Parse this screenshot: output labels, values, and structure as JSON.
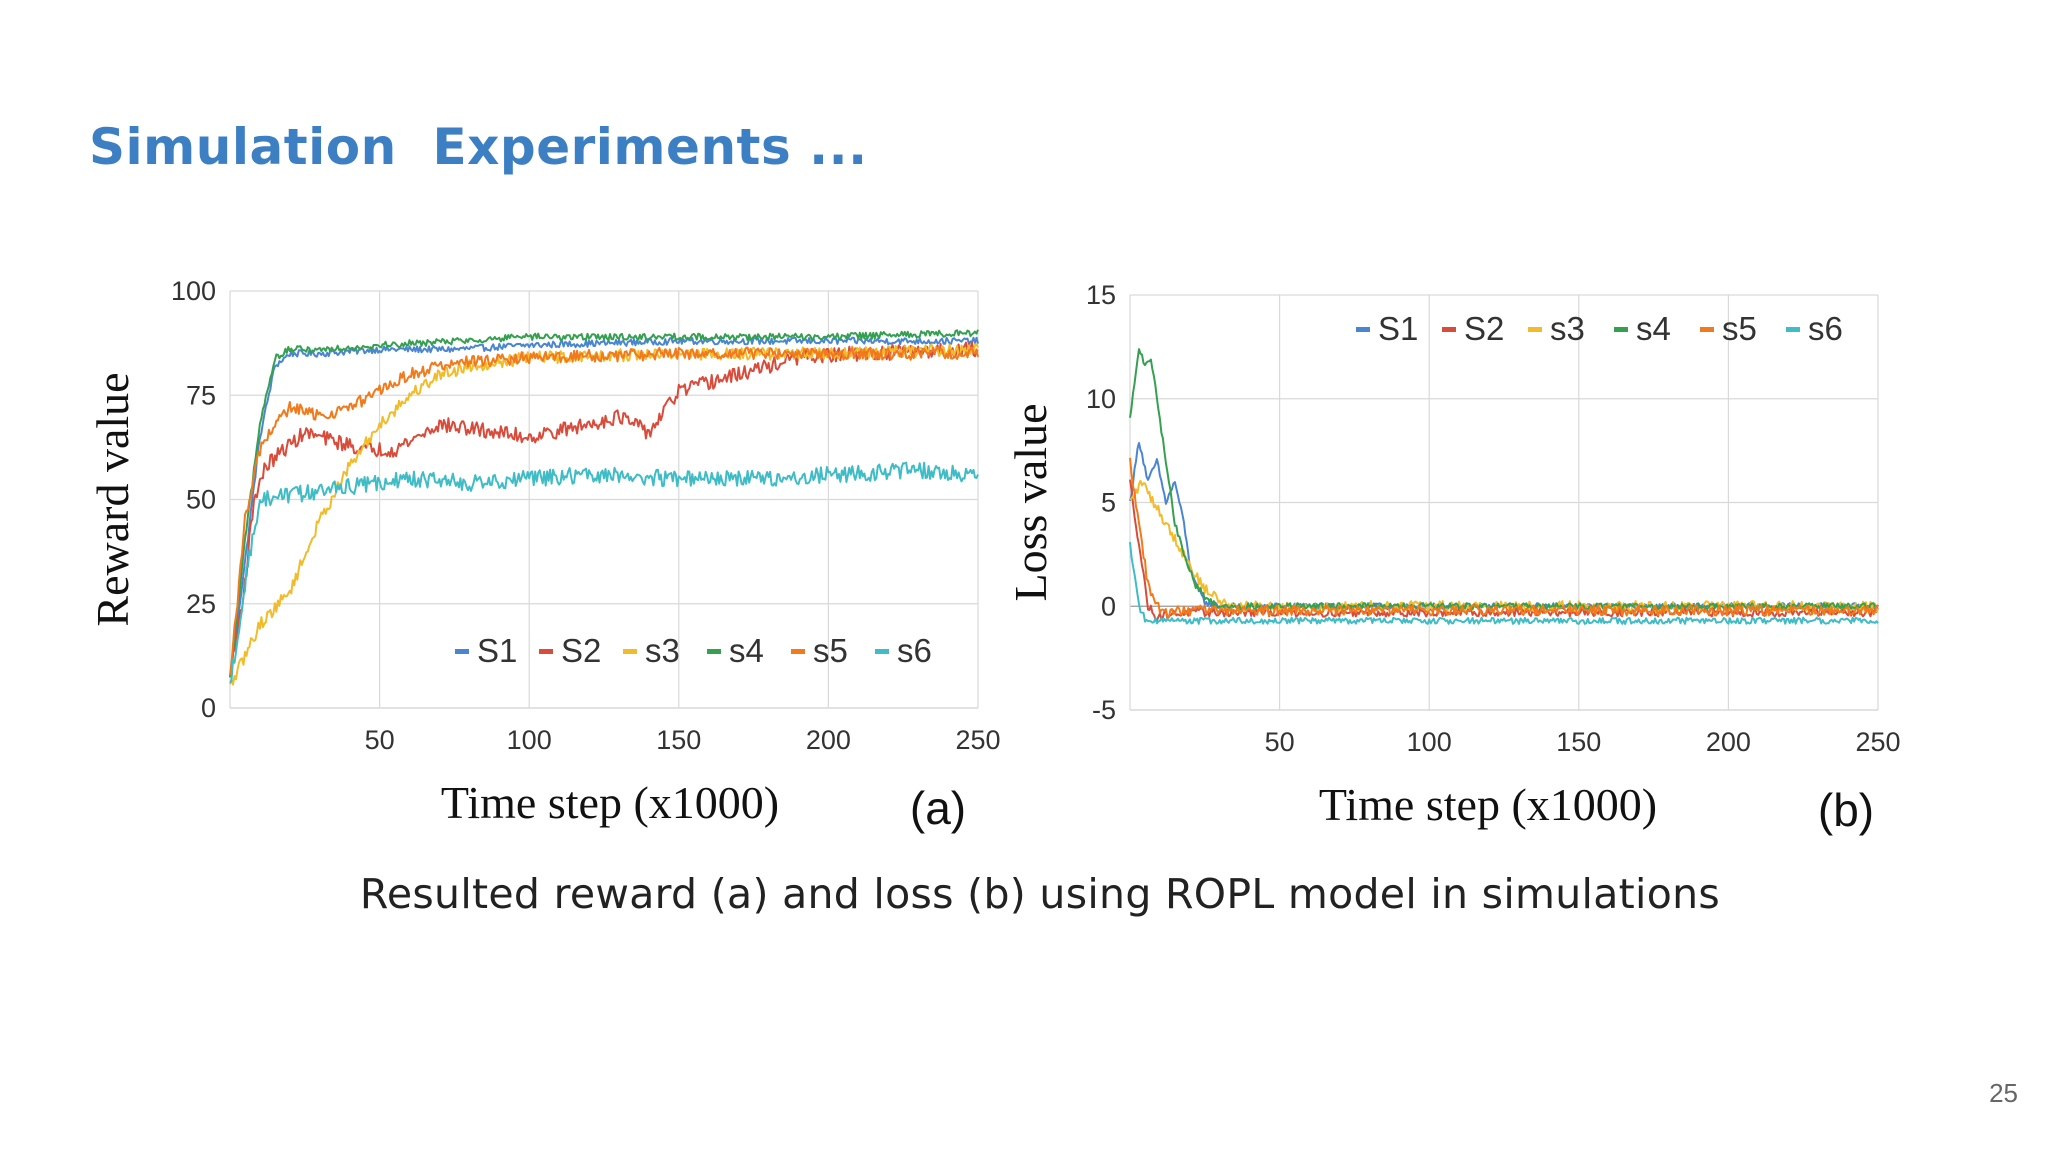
{
  "slide": {
    "title": "Simulation  Experiments ...",
    "caption": "Resulted reward (a) and loss (b) using ROPL model in simulations",
    "page_number": "25"
  },
  "colors": {
    "title": "#3d7fc3",
    "S1": "#4a86cf",
    "S2": "#d84c3c",
    "s3": "#f2bb2a",
    "s4": "#36a050",
    "s5": "#f07a1c",
    "s6": "#3fbcc6"
  },
  "chart_data": [
    {
      "type": "line",
      "panel_label": "(a)",
      "xlabel": "Time step (x1000)",
      "ylabel": "Reward value",
      "xlim": [
        0,
        250
      ],
      "ylim": [
        0,
        100
      ],
      "x_ticks": [
        50,
        100,
        150,
        200,
        250
      ],
      "y_ticks": [
        0,
        25,
        50,
        75,
        100
      ],
      "grid": true,
      "legend_position": "bottom-right",
      "series": [
        {
          "name": "S1",
          "color": "#4a86cf",
          "noise": 0.8,
          "x": [
            0,
            5,
            10,
            15,
            20,
            30,
            50,
            75,
            100,
            150,
            200,
            250
          ],
          "y": [
            7,
            35,
            65,
            82,
            85,
            85,
            86,
            86,
            87,
            88,
            88,
            88
          ]
        },
        {
          "name": "S2",
          "color": "#d84c3c",
          "noise": 1.8,
          "x": [
            0,
            5,
            8,
            12,
            18,
            25,
            35,
            45,
            55,
            70,
            90,
            100,
            120,
            130,
            140,
            150,
            160,
            170,
            190,
            210,
            250
          ],
          "y": [
            7,
            30,
            50,
            58,
            62,
            66,
            64,
            62,
            62,
            68,
            66,
            65,
            68,
            70,
            66,
            76,
            78,
            80,
            84,
            85,
            86
          ]
        },
        {
          "name": "s3",
          "color": "#f2bb2a",
          "noise": 1.5,
          "x": [
            0,
            10,
            20,
            30,
            40,
            50,
            60,
            70,
            80,
            100,
            150,
            200,
            250
          ],
          "y": [
            5,
            20,
            28,
            45,
            58,
            68,
            75,
            80,
            82,
            84,
            85,
            85,
            86
          ]
        },
        {
          "name": "s4",
          "color": "#36a050",
          "noise": 0.8,
          "x": [
            0,
            5,
            10,
            15,
            20,
            30,
            50,
            75,
            100,
            150,
            200,
            250
          ],
          "y": [
            7,
            40,
            68,
            84,
            86,
            86,
            87,
            88,
            89,
            89,
            89,
            90
          ]
        },
        {
          "name": "s5",
          "color": "#f07a1c",
          "noise": 1.5,
          "x": [
            0,
            5,
            10,
            15,
            20,
            30,
            40,
            50,
            60,
            70,
            80,
            100,
            150,
            200,
            250
          ],
          "y": [
            7,
            45,
            62,
            68,
            72,
            70,
            72,
            76,
            80,
            82,
            83,
            84,
            85,
            85,
            85
          ]
        },
        {
          "name": "s6",
          "color": "#3fbcc6",
          "noise": 2.0,
          "x": [
            0,
            5,
            10,
            20,
            40,
            60,
            80,
            100,
            120,
            150,
            180,
            200,
            230,
            250
          ],
          "y": [
            5,
            30,
            50,
            51,
            53,
            55,
            54,
            55,
            56,
            55,
            55,
            56,
            57,
            56
          ]
        }
      ]
    },
    {
      "type": "line",
      "panel_label": "(b)",
      "xlabel": "Time step (x1000)",
      "ylabel": "Loss value",
      "xlim": [
        0,
        250
      ],
      "ylim": [
        -5,
        15
      ],
      "x_ticks": [
        50,
        100,
        150,
        200,
        250
      ],
      "y_ticks": [
        -5,
        0,
        5,
        10,
        15
      ],
      "grid": true,
      "legend_position": "top-right",
      "series": [
        {
          "name": "S1",
          "color": "#4a86cf",
          "noise": 0.15,
          "x": [
            0,
            3,
            6,
            9,
            12,
            15,
            18,
            20,
            22,
            25,
            30,
            250
          ],
          "y": [
            5,
            8,
            6,
            7,
            5,
            6,
            4,
            2,
            1,
            0.2,
            0,
            0
          ]
        },
        {
          "name": "S2",
          "color": "#d84c3c",
          "noise": 0.2,
          "x": [
            0,
            3,
            6,
            9,
            12,
            20,
            40,
            250
          ],
          "y": [
            6,
            3,
            0,
            -0.5,
            -0.4,
            -0.3,
            -0.3,
            -0.3
          ]
        },
        {
          "name": "s3",
          "color": "#f2bb2a",
          "noise": 0.25,
          "x": [
            0,
            4,
            8,
            12,
            16,
            20,
            24,
            28,
            32,
            35,
            40,
            250
          ],
          "y": [
            5,
            6,
            5,
            4,
            3,
            2,
            1,
            0.5,
            0.1,
            0,
            0,
            0
          ]
        },
        {
          "name": "s4",
          "color": "#36a050",
          "noise": 0.15,
          "x": [
            0,
            3,
            5,
            7,
            9,
            11,
            13,
            15,
            18,
            22,
            26,
            30,
            250
          ],
          "y": [
            9,
            12.5,
            11.5,
            12,
            10,
            8,
            6,
            4,
            2.5,
            1,
            0.3,
            0,
            0
          ]
        },
        {
          "name": "s5",
          "color": "#f07a1c",
          "noise": 0.25,
          "x": [
            0,
            3,
            6,
            9,
            12,
            20,
            40,
            250
          ],
          "y": [
            7,
            4,
            1,
            0,
            -0.3,
            -0.2,
            -0.2,
            -0.2
          ]
        },
        {
          "name": "s6",
          "color": "#3fbcc6",
          "noise": 0.15,
          "x": [
            0,
            3,
            5,
            8,
            12,
            20,
            40,
            250
          ],
          "y": [
            3,
            0,
            -0.6,
            -0.7,
            -0.7,
            -0.7,
            -0.7,
            -0.7
          ]
        }
      ]
    }
  ]
}
